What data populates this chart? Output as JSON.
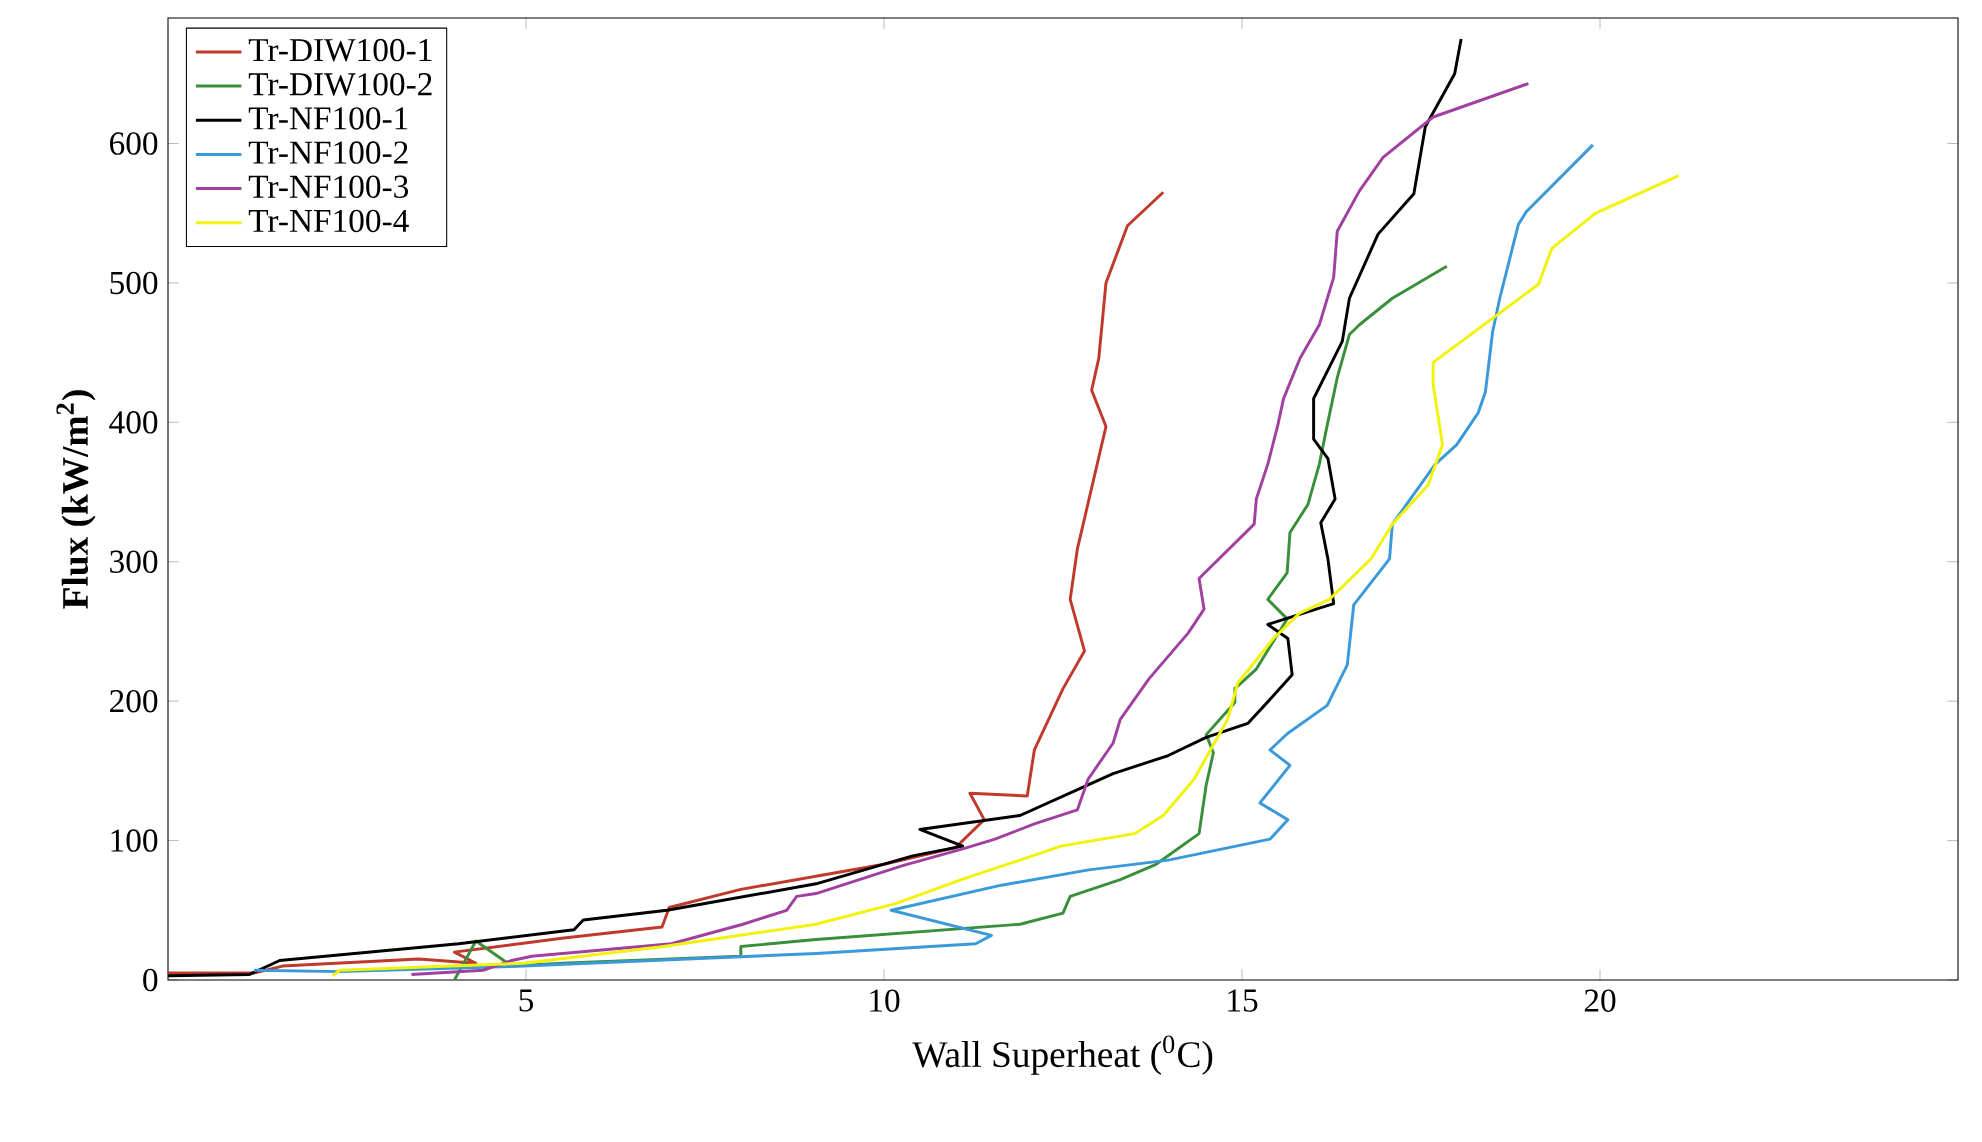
{
  "chart_data": {
    "type": "line",
    "xlabel": "Wall Superheat ($^{0}$C)",
    "ylabel": "Flux (kW/m$^{2}$)",
    "xlim": [
      0,
      25
    ],
    "ylim": [
      0,
      690
    ],
    "xticks": [
      5,
      10,
      15,
      20
    ],
    "yticks": [
      0,
      100,
      200,
      300,
      400,
      500,
      600
    ],
    "legend": "top left",
    "series": [
      {
        "name": "Tr-DIW100-1",
        "color": "#c0392b",
        "x": [
          0,
          1.2,
          1.6,
          3.5,
          4.3,
          4.0,
          5.5,
          6.9,
          7.0,
          8,
          10,
          11.0,
          11.4,
          11.2,
          12.0,
          12.1,
          12.5,
          12.8,
          12.6,
          12.7,
          13.1,
          12.9,
          13.0,
          13.1,
          13.4,
          13.9
        ],
        "values": [
          5,
          5,
          10,
          15,
          12,
          20,
          30,
          38,
          52,
          65,
          83,
          95,
          115,
          134,
          132,
          165,
          209,
          236,
          273,
          309,
          397,
          423,
          446,
          500,
          541,
          565
        ]
      },
      {
        "name": "Tr-DIW100-2",
        "color": "#3a8f3a",
        "x": [
          4.0,
          4.3,
          4.8,
          5.5,
          8.0,
          8.0,
          9.05,
          11.9,
          12.5,
          12.6,
          13.3,
          13.8,
          14.4,
          14.5,
          14.6,
          14.5,
          14.9,
          14.9,
          15.2,
          15.63,
          15.36,
          15.63,
          15.67,
          15.92,
          16.08,
          16.19,
          16.33,
          16.5,
          16.64,
          17.1,
          17.86
        ],
        "values": [
          0,
          28,
          10,
          12,
          17,
          24,
          29,
          40,
          48,
          60,
          72,
          83,
          105,
          140,
          163,
          176,
          199,
          209,
          223,
          259,
          273,
          292,
          321,
          341,
          370,
          398,
          432,
          463,
          470,
          489,
          512
        ]
      },
      {
        "name": "Tr-NF100-1",
        "color": "#000000",
        "x": [
          0,
          1.14,
          1.56,
          4.06,
          5.67,
          5.8,
          6.97,
          9.05,
          10.4,
          11.1,
          10.5,
          11.9,
          12.85,
          13.2,
          13.97,
          14.5,
          15.08,
          15.44,
          15.7,
          15.64,
          15.36,
          16.28,
          16.2,
          16.1,
          16.3,
          16.2,
          16.0,
          16.0,
          16.4,
          16.5,
          16.9,
          17.4,
          17.56,
          17.97,
          18.06
        ],
        "values": [
          3,
          4,
          14,
          26,
          36,
          43,
          50,
          69,
          89,
          96,
          108,
          118,
          140,
          148,
          161,
          174,
          184,
          204,
          219,
          245,
          255,
          270,
          302,
          328,
          345,
          374,
          388,
          417,
          458,
          489,
          535,
          564,
          612,
          650,
          675
        ]
      },
      {
        "name": "Tr-NF100-2",
        "color": "#3a9ad9",
        "x": [
          1.2,
          2.4,
          4.97,
          9.05,
          11.28,
          11.5,
          10.1,
          11.64,
          12.86,
          13.97,
          15.39,
          15.64,
          15.25,
          15.67,
          15.39,
          15.64,
          16.19,
          16.47,
          16.56,
          17.06,
          17.1,
          17.7,
          18.0,
          18.3,
          18.4,
          18.5,
          18.6,
          18.86,
          18.97,
          19.9
        ],
        "values": [
          7,
          6,
          10,
          19,
          26,
          32,
          50,
          68,
          79,
          86,
          101,
          115,
          127,
          154,
          165,
          177,
          197,
          226,
          269,
          302,
          327,
          370,
          384,
          407,
          422,
          465,
          489,
          542,
          551,
          599
        ]
      },
      {
        "name": "Tr-NF100-3",
        "color": "#a040a0",
        "x": [
          3.4,
          4.4,
          4.8,
          5.08,
          7.03,
          8.03,
          8.64,
          8.78,
          9.05,
          10.26,
          11.1,
          11.55,
          12.1,
          12.7,
          12.85,
          13.2,
          13.3,
          13.7,
          14.25,
          14.47,
          14.4,
          15.17,
          15.2,
          15.36,
          15.5,
          15.58,
          15.81,
          16.08,
          16.28,
          16.33,
          16.64,
          16.97,
          17.67,
          19.0
        ],
        "values": [
          4,
          7,
          14,
          17,
          26,
          40,
          50,
          60,
          62,
          82,
          94,
          101,
          112,
          122,
          144,
          170,
          187,
          216,
          249,
          266,
          288,
          327,
          345,
          370,
          398,
          417,
          446,
          470,
          504,
          537,
          566,
          590,
          619,
          643
        ]
      },
      {
        "name": "Tr-NF100-4",
        "color": "#f2f20a",
        "x": [
          2.3,
          2.4,
          4.97,
          6.92,
          9.05,
          10.17,
          11.08,
          11.9,
          12.47,
          13.5,
          13.9,
          14.33,
          14.8,
          14.94,
          15.44,
          15.8,
          16.22,
          16.8,
          17.1,
          17.6,
          17.8,
          17.67,
          17.67,
          19.14,
          19.33,
          19.94,
          21.1
        ],
        "values": [
          3,
          7,
          12,
          24,
          40,
          55,
          72,
          86,
          96,
          105,
          118,
          144,
          187,
          213,
          245,
          263,
          273,
          302,
          327,
          355,
          384,
          427,
          443,
          499,
          525,
          550,
          577
        ]
      }
    ]
  }
}
